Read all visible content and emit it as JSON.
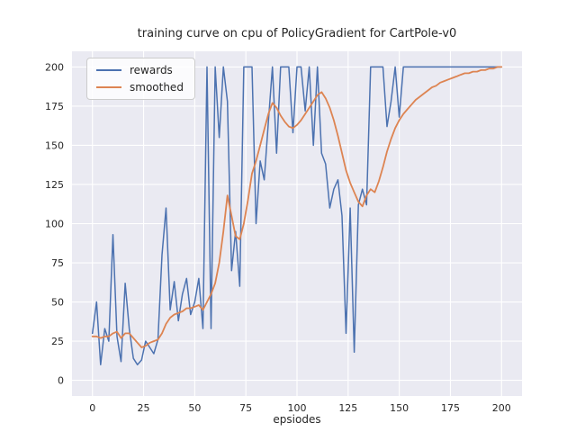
{
  "figure": {
    "title": "training curve on cpu of PolicyGradient for CartPole-v0",
    "xlabel": "epsiodes"
  },
  "chart_data": {
    "type": "line",
    "title": "training curve on cpu of PolicyGradient for CartPole-v0",
    "xlabel": "epsiodes",
    "ylabel": "",
    "xlim": [
      -10,
      210
    ],
    "ylim": [
      -10,
      210
    ],
    "xticks": [
      0,
      25,
      50,
      75,
      100,
      125,
      150,
      175,
      200
    ],
    "yticks": [
      0,
      25,
      50,
      75,
      100,
      125,
      150,
      175,
      200
    ],
    "grid": true,
    "grid_color": "#ffffff",
    "background": "#eaeaf2",
    "text_color": "#262626",
    "legend_position": "upper left",
    "x": [
      0,
      2,
      4,
      6,
      8,
      10,
      12,
      14,
      16,
      18,
      20,
      22,
      24,
      26,
      28,
      30,
      32,
      34,
      36,
      38,
      40,
      42,
      44,
      46,
      48,
      50,
      52,
      54,
      56,
      58,
      60,
      62,
      64,
      66,
      68,
      70,
      72,
      74,
      76,
      78,
      80,
      82,
      84,
      86,
      88,
      90,
      92,
      94,
      96,
      98,
      100,
      102,
      104,
      106,
      108,
      110,
      112,
      114,
      116,
      118,
      120,
      122,
      124,
      126,
      128,
      130,
      132,
      134,
      136,
      138,
      140,
      142,
      144,
      146,
      148,
      150,
      152,
      154,
      156,
      158,
      160,
      162,
      164,
      166,
      168,
      170,
      172,
      174,
      176,
      178,
      180,
      182,
      184,
      186,
      188,
      190,
      192,
      194,
      196,
      198,
      200
    ],
    "series": [
      {
        "name": "rewards",
        "color": "#4c72b0",
        "values": [
          30,
          50,
          10,
          33,
          25,
          93,
          28,
          12,
          62,
          33,
          14,
          10,
          13,
          25,
          21,
          17,
          26,
          80,
          110,
          45,
          63,
          38,
          55,
          65,
          42,
          50,
          65,
          33,
          200,
          33,
          200,
          155,
          200,
          178,
          70,
          95,
          60,
          200,
          200,
          200,
          100,
          140,
          128,
          165,
          200,
          145,
          200,
          200,
          200,
          158,
          200,
          200,
          172,
          200,
          150,
          200,
          145,
          138,
          110,
          122,
          128,
          105,
          30,
          110,
          18,
          112,
          122,
          112,
          200,
          200,
          200,
          200,
          162,
          178,
          200,
          168,
          200,
          200,
          200,
          200,
          200,
          200,
          200,
          200,
          200,
          200,
          200,
          200,
          200,
          200,
          200,
          200,
          200,
          200,
          200,
          200,
          200,
          200,
          200,
          200,
          200
        ]
      },
      {
        "name": "smoothed",
        "color": "#dd8452",
        "values": [
          28,
          28,
          27,
          28,
          28,
          30,
          31,
          27,
          30,
          30,
          27,
          24,
          21,
          22,
          24,
          25,
          26,
          30,
          36,
          40,
          42,
          43,
          44,
          46,
          46,
          47,
          48,
          45,
          50,
          55,
          62,
          75,
          95,
          118,
          105,
          92,
          90,
          100,
          115,
          132,
          140,
          150,
          160,
          170,
          177,
          174,
          169,
          165,
          162,
          161,
          163,
          166,
          170,
          174,
          178,
          182,
          184,
          180,
          174,
          166,
          156,
          145,
          134,
          126,
          120,
          114,
          111,
          118,
          122,
          120,
          127,
          136,
          146,
          154,
          161,
          166,
          170,
          173,
          176,
          179,
          181,
          183,
          185,
          187,
          188,
          190,
          191,
          192,
          193,
          194,
          195,
          196,
          196,
          197,
          197,
          198,
          198,
          199,
          199,
          200,
          200
        ]
      }
    ]
  }
}
